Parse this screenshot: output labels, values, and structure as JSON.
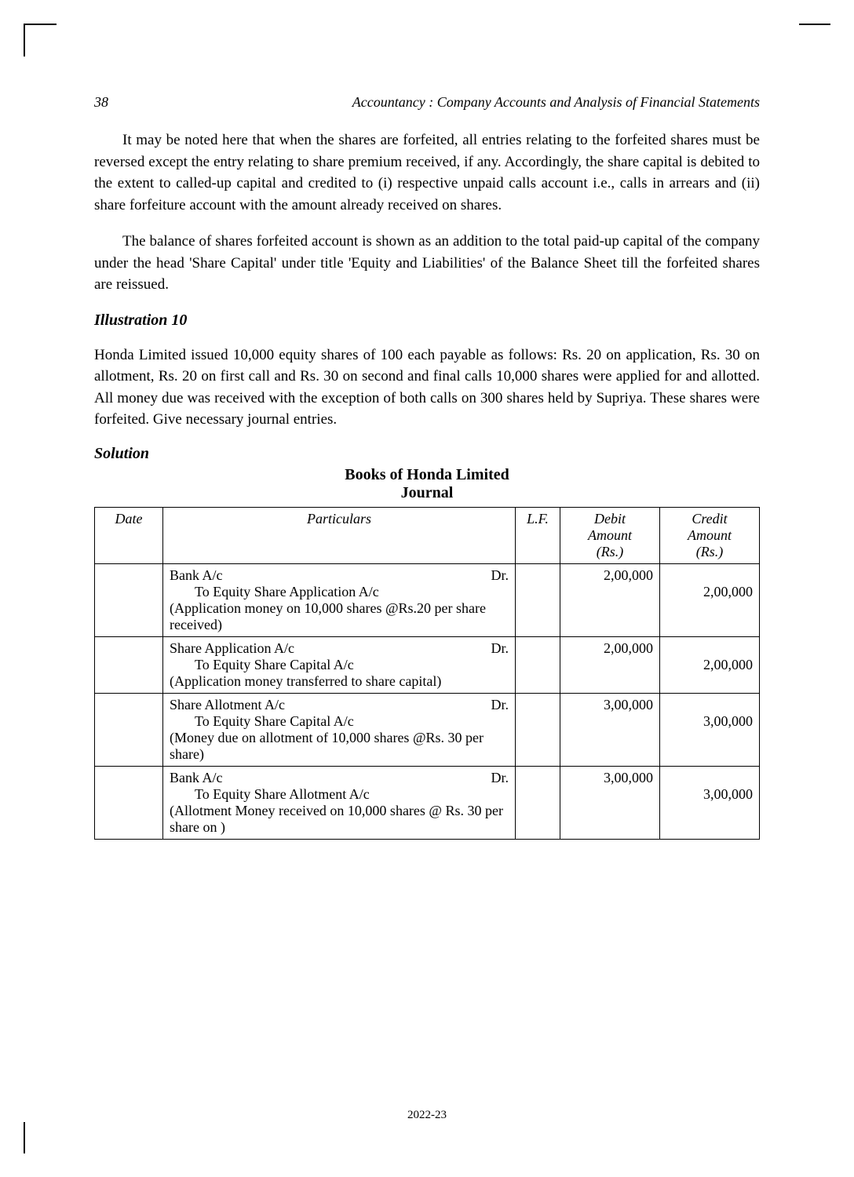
{
  "header": {
    "page_number": "38",
    "book_title": "Accountancy : Company Accounts and Analysis of Financial Statements"
  },
  "paragraphs": {
    "p1": "It may be noted here that when the shares are forfeited, all entries relating to the forfeited shares must be reversed except the entry relating to share premium received, if any. Accordingly, the share capital is debited to the extent to called-up capital and credited to (i) respective unpaid calls account i.e., calls in arrears and (ii) share forfeiture account with the amount already received on shares.",
    "p2": "The balance of shares forfeited account is shown as an addition to the total paid-up capital of the company under the head 'Share Capital' under title 'Equity and Liabilities' of the Balance Sheet till the forfeited shares are reissued."
  },
  "illustration": {
    "heading": "Illustration  10",
    "text": "Honda Limited issued 10,000 equity shares of 100 each payable as follows: Rs. 20 on application, Rs. 30 on allotment,  Rs. 20 on first call and Rs. 30 on second and final calls 10,000 shares were applied for and allotted.  All money due was received with the exception of both calls on 300 shares held by Supriya. These shares were forfeited.  Give necessary journal entries."
  },
  "solution": {
    "heading": "Solution",
    "journal_title_1": "Books of Honda Limited",
    "journal_title_2": "Journal",
    "columns": {
      "date": "Date",
      "particulars": "Particulars",
      "lf": "L.F.",
      "debit": "Debit Amount (Rs.)",
      "credit": "Credit Amount (Rs.)"
    },
    "entries": [
      {
        "main": "Bank A/c",
        "dr": "Dr.",
        "to": "To Equity Share Application A/c",
        "narr": "(Application money on 10,000 shares @Rs.20 per share received)",
        "debit": "2,00,000",
        "credit": "2,00,000"
      },
      {
        "main": "Share Application A/c",
        "dr": "Dr.",
        "to": "To Equity  Share Capital A/c",
        "narr": "(Application money transferred to share capital)",
        "debit": "2,00,000",
        "credit": "2,00,000"
      },
      {
        "main": "Share Allotment A/c",
        "dr": "Dr.",
        "to": "To Equity Share Capital A/c",
        "narr": "(Money due on allotment of 10,000 shares @Rs. 30 per share)",
        "debit": "3,00,000",
        "credit": "3,00,000"
      },
      {
        "main": "Bank A/c",
        "dr": "Dr.",
        "to": "To Equity Share Allotment A/c",
        "narr": "(Allotment Money received on 10,000 shares @ Rs. 30 per share on )",
        "debit": "3,00,000",
        "credit": "3,00,000"
      }
    ]
  },
  "footer": {
    "year": "2022-23"
  }
}
